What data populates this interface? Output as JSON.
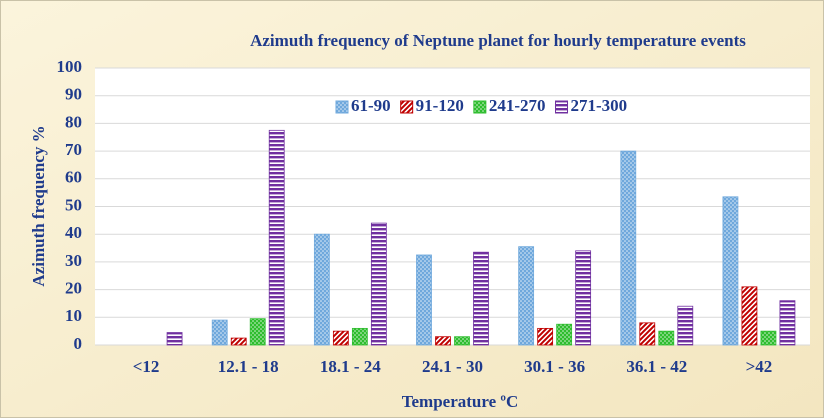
{
  "chart_data": {
    "type": "bar",
    "title": "Azimuth frequency of Neptune planet for hourly temperature events",
    "xlabel": "Temperature ºC",
    "ylabel": "Azimuth frequency %",
    "categories": [
      "<12",
      "12.1 - 18",
      "18.1 - 24",
      "24.1 - 30",
      "30.1 - 36",
      "36.1 - 42",
      ">42"
    ],
    "series": [
      {
        "name": "61-90",
        "color": "#6fa8dc",
        "pattern": "dots",
        "values": [
          0,
          9,
          40,
          32.5,
          35.5,
          70,
          53.5
        ]
      },
      {
        "name": "91-120",
        "color": "#c00000",
        "pattern": "diagonal",
        "values": [
          0,
          2.5,
          5,
          3,
          6,
          8,
          21
        ]
      },
      {
        "name": "241-270",
        "color": "#2ebd2e",
        "pattern": "dots",
        "values": [
          0,
          9.5,
          6,
          3,
          7.5,
          5,
          5
        ]
      },
      {
        "name": "271-300",
        "color": "#7030a0",
        "pattern": "horizontal",
        "values": [
          4.5,
          77.5,
          44,
          33.5,
          34,
          14,
          16
        ]
      }
    ],
    "ylim": [
      0,
      100
    ],
    "yticks": [
      0,
      10,
      20,
      30,
      40,
      50,
      60,
      70,
      80,
      90,
      100
    ],
    "grid": true,
    "legend": "top"
  }
}
